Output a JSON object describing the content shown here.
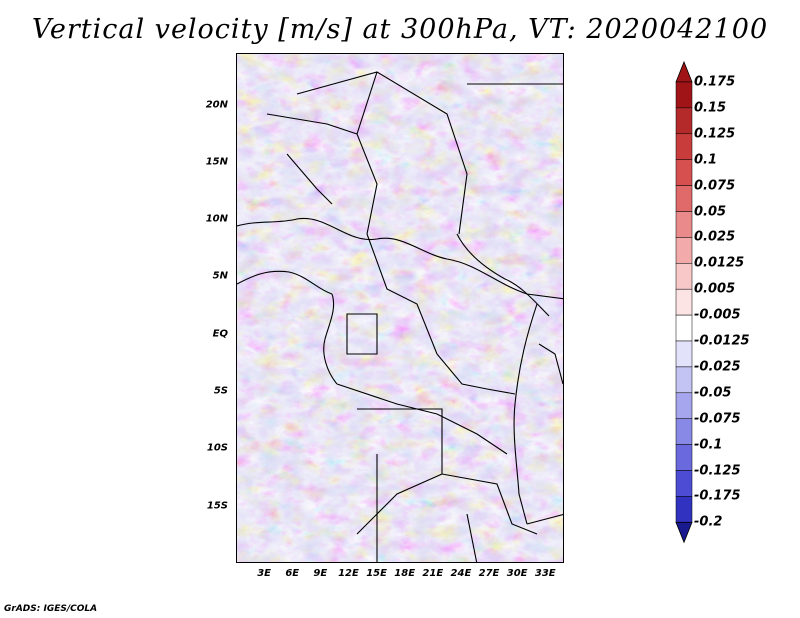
{
  "title": "Vertical velocity [m/s] at 300hPa, VT: 2020042100",
  "footer": "GrADS: IGES/COLA",
  "map": {
    "variable": "Vertical velocity",
    "units": "m/s",
    "level": "300hPa",
    "valid_time": "2020042100",
    "lon_range": [
      0,
      35
    ],
    "lat_range": [
      -20,
      24.5
    ],
    "y_ticks": [
      {
        "label": "20N",
        "lat": 20
      },
      {
        "label": "15N",
        "lat": 15
      },
      {
        "label": "10N",
        "lat": 10
      },
      {
        "label": "5N",
        "lat": 5
      },
      {
        "label": "EQ",
        "lat": 0
      },
      {
        "label": "5S",
        "lat": -5
      },
      {
        "label": "10S",
        "lat": -10
      },
      {
        "label": "15S",
        "lat": -15
      }
    ],
    "x_ticks": [
      {
        "label": "3E",
        "lon": 3
      },
      {
        "label": "6E",
        "lon": 6
      },
      {
        "label": "9E",
        "lon": 9
      },
      {
        "label": "12E",
        "lon": 12
      },
      {
        "label": "15E",
        "lon": 15
      },
      {
        "label": "18E",
        "lon": 18
      },
      {
        "label": "21E",
        "lon": 21
      },
      {
        "label": "24E",
        "lon": 24
      },
      {
        "label": "27E",
        "lon": 27
      },
      {
        "label": "30E",
        "lon": 30
      },
      {
        "label": "33E",
        "lon": 33
      }
    ]
  },
  "colorbar": {
    "levels": [
      {
        "label": "0.175",
        "color": "#a01418"
      },
      {
        "label": "0.15",
        "color": "#b42a2a"
      },
      {
        "label": "0.125",
        "color": "#c83c3c"
      },
      {
        "label": "0.1",
        "color": "#d65050"
      },
      {
        "label": "0.075",
        "color": "#e06a6a"
      },
      {
        "label": "0.05",
        "color": "#ea8a8a"
      },
      {
        "label": "0.025",
        "color": "#f2aaaa"
      },
      {
        "label": "0.0125",
        "color": "#f8c8c8"
      },
      {
        "label": "0.005",
        "color": "#fce4e4"
      },
      {
        "label": "-0.005",
        "color": "#ffffff"
      },
      {
        "label": "-0.0125",
        "color": "#e2e2fa"
      },
      {
        "label": "-0.025",
        "color": "#c4c4f4"
      },
      {
        "label": "-0.05",
        "color": "#a6a6ee"
      },
      {
        "label": "-0.075",
        "color": "#8888e6"
      },
      {
        "label": "-0.1",
        "color": "#6a6ade"
      },
      {
        "label": "-0.125",
        "color": "#4c4cd4"
      },
      {
        "label": "-0.175",
        "color": "#3232c0"
      },
      {
        "label": "-0.2",
        "color": "#2020a4"
      }
    ],
    "top_arrow_color": "#a01418",
    "bottom_arrow_color": "#1a1a90"
  }
}
